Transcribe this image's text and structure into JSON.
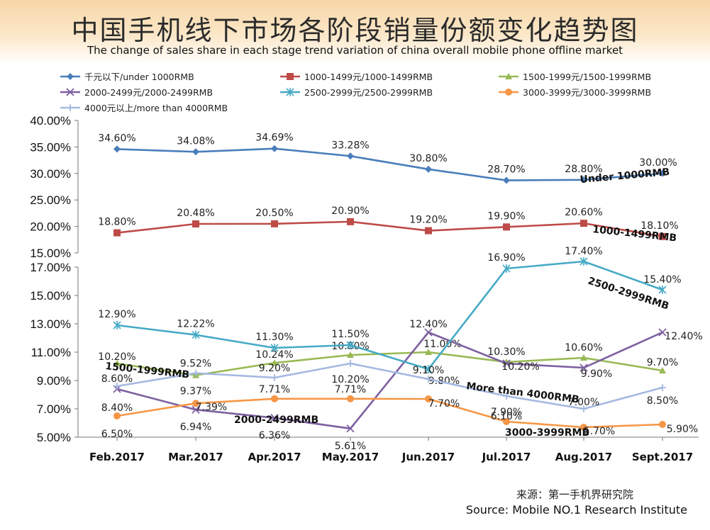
{
  "header": {
    "title_cn": "中国手机线下市场各阶段销量份额变化趋势图",
    "title_en": "The change of sales share in each stage trend variation of china overall mobile phone offline market"
  },
  "footer": {
    "source_cn": "来源：第一手机界研究院",
    "source_en": "Source: Mobile NO.1 Research Institute"
  },
  "chart_data": {
    "type": "line",
    "categories": [
      "Feb.2017",
      "Mar.2017",
      "Apr.2017",
      "May.2017",
      "Jun.2017",
      "Jul.2017",
      "Aug.2017",
      "Sept.2017"
    ],
    "y_ticks_upper": [
      "40.00%",
      "35.00%",
      "30.00%",
      "25.00%",
      "20.00%",
      "15.00%"
    ],
    "y_ticks_lower": [
      "17.00%",
      "15.00%",
      "13.00%",
      "11.00%",
      "9.00%",
      "7.00%",
      "5.00%"
    ],
    "upper_ylim": [
      15,
      40
    ],
    "lower_ylim": [
      5,
      17
    ],
    "series": [
      {
        "name": "千元以下/under 1000RMB",
        "short_label": "Under 1000RMB",
        "panel": "upper",
        "color": "#4a7ebb",
        "marker": "diamond",
        "values": [
          34.6,
          34.08,
          34.69,
          33.28,
          30.8,
          28.7,
          28.8,
          30.0
        ],
        "labels": [
          "34.60%",
          "34.08%",
          "34.69%",
          "33.28%",
          "30.80%",
          "28.70%",
          "28.80%",
          "30.00%"
        ]
      },
      {
        "name": "1000-1499元/1000-1499RMB",
        "short_label": "1000-1499RMB",
        "panel": "upper",
        "color": "#be4b48",
        "marker": "square",
        "values": [
          18.8,
          20.48,
          20.5,
          20.9,
          19.2,
          19.9,
          20.6,
          18.1
        ],
        "labels": [
          "18.80%",
          "20.48%",
          "20.50%",
          "20.90%",
          "19.20%",
          "19.90%",
          "20.60%",
          "18.10%"
        ]
      },
      {
        "name": "1500-1999元/1500-1999RMB",
        "short_label": "1500-1999RMB",
        "panel": "lower",
        "color": "#98b954",
        "marker": "triangle",
        "values": [
          10.2,
          9.37,
          10.24,
          10.8,
          11.0,
          10.3,
          10.6,
          9.7
        ],
        "labels": [
          "10.20%",
          "9.37%",
          "10.24%",
          "10.80%",
          "11.00%",
          "10.30%",
          "10.60%",
          "9.70%"
        ]
      },
      {
        "name": "2000-2499元/2000-2499RMB",
        "short_label": "2000-2499RMB",
        "panel": "lower",
        "color": "#7d60a0",
        "marker": "x",
        "values": [
          8.4,
          6.94,
          6.36,
          5.61,
          12.4,
          10.2,
          9.9,
          12.4
        ],
        "labels": [
          "8.40%",
          "6.94%",
          "6.36%",
          "5.61%",
          "12.40%",
          "10.20%",
          "9.90%",
          "12.40%"
        ]
      },
      {
        "name": "2500-2999元/2500-2999RMB",
        "short_label": "2500-2999RMB",
        "panel": "lower",
        "color": "#46aac5",
        "marker": "star",
        "values": [
          12.9,
          12.22,
          11.3,
          11.5,
          9.8,
          16.9,
          17.4,
          15.4
        ],
        "labels": [
          "12.90%",
          "12.22%",
          "11.30%",
          "11.50%",
          "9.80%",
          "16.90%",
          "17.40%",
          "15.40%"
        ]
      },
      {
        "name": "3000-3999元/3000-3999RMB",
        "short_label": "3000-3999RMB",
        "panel": "lower",
        "color": "#f69646",
        "marker": "circle",
        "values": [
          6.5,
          7.39,
          7.71,
          7.71,
          7.7,
          6.1,
          5.7,
          5.9
        ],
        "labels": [
          "6.50%",
          "7.39%",
          "7.71%",
          "7.71%",
          "7.70%",
          "6.10%",
          "5.70%",
          "5.90%"
        ]
      },
      {
        "name": "4000元以上/more than 4000RMB",
        "short_label": "More than 4000RMB",
        "panel": "lower",
        "color": "#a5b9e0",
        "marker": "plus",
        "values": [
          8.6,
          9.52,
          9.2,
          10.2,
          9.1,
          7.9,
          7.0,
          8.5
        ],
        "labels": [
          "8.60%",
          "9.52%",
          "9.20%",
          "10.20%",
          "9.10%",
          "7.90%",
          "7.00%",
          "8.50%"
        ]
      }
    ]
  }
}
